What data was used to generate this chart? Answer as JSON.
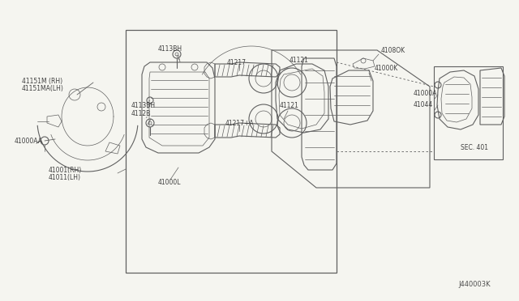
{
  "bg_color": "#f5f5f0",
  "line_color": "#606060",
  "text_color": "#404040",
  "diagram_id": "J440003K",
  "labels": {
    "41151M_RH": "41151M (RH)",
    "41151MA_LH": "41151MA(LH)",
    "41000AA": "41000AA",
    "4113BH_top": "4113BH",
    "4112B": "4112B",
    "4113BH_bot": "4113BH",
    "41217": "41217",
    "41217A": "41217+A",
    "41121_top": "41121",
    "41121_bot": "41121",
    "41000L": "41000L",
    "41001_RH": "41001(RH)",
    "41011_LH": "41011(LH)",
    "4108OK": "4108OK",
    "41000K": "41000K",
    "41000A": "41000A",
    "41044": "41044",
    "SEC401": "SEC. 401"
  },
  "fig_width": 6.4,
  "fig_height": 3.72,
  "dpi": 100
}
